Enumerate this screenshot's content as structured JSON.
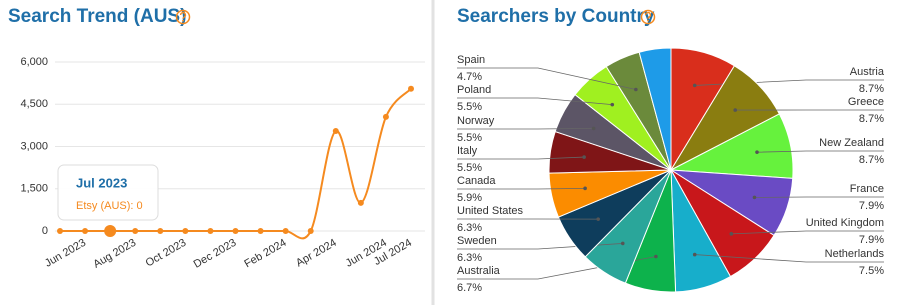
{
  "chart_data": [
    {
      "type": "line",
      "title": "Search Trend (AUS)",
      "categories": [
        null,
        "Jun 2023",
        null,
        "Aug 2023",
        null,
        "Oct 2023",
        null,
        "Dec 2023",
        null,
        "Feb 2024",
        null,
        "Apr 2024",
        null,
        "Jun 2024",
        "Jul 2024"
      ],
      "series": [
        {
          "name": "Etsy (AUS)",
          "color": "#f58a1f",
          "values": [
            0,
            0,
            0,
            0,
            0,
            0,
            0,
            0,
            0,
            0,
            0,
            3550,
            1000,
            4050,
            5050
          ]
        }
      ],
      "ylim": [
        0,
        6000
      ],
      "yticks": [
        0,
        {
          "value": 1500,
          "label": "1,500"
        },
        {
          "value": 3000,
          "label": "3,000"
        },
        {
          "value": 4500,
          "label": "4,500"
        },
        {
          "value": 6000,
          "label": "6,000"
        }
      ],
      "grid": true,
      "tooltip": {
        "title": "Jul 2023",
        "text": "Etsy (AUS): 0"
      }
    },
    {
      "type": "pie",
      "title": "Searchers by Country",
      "categories": [
        "Austria",
        "Greece",
        "New Zealand",
        "France",
        "United Kingdom",
        "Netherlands",
        "Australia",
        "Sweden",
        "United States",
        "Canada",
        "Italy",
        "Norway",
        "Poland",
        "Spain",
        null
      ],
      "values": [
        8.7,
        8.7,
        8.7,
        7.9,
        7.9,
        7.5,
        6.7,
        6.3,
        6.3,
        5.9,
        5.5,
        5.5,
        5.5,
        4.7,
        4.2
      ],
      "value_labels": [
        "8.7%",
        "8.7%",
        "8.7%",
        "7.9%",
        "7.9%",
        "7.5%",
        "6.7%",
        "6.3%",
        "6.3%",
        "5.9%",
        "5.5%",
        "5.5%",
        "5.5%",
        "4.7%",
        null
      ],
      "colors": [
        "#d92e1c",
        "#8a7d10",
        "#66f23d",
        "#6a4bc4",
        "#c8171b",
        "#17aecb",
        "#0db24c",
        "#2aa69a",
        "#0e3d5c",
        "#fb8c00",
        "#7f1517",
        "#5c5566",
        "#a0f020",
        "#6b8a3b",
        "#1e9be8"
      ]
    }
  ]
}
